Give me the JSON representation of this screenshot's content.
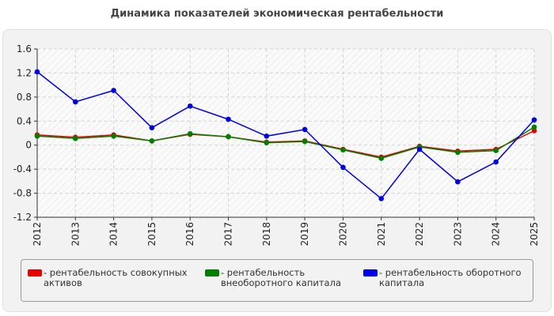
{
  "chart_data": {
    "type": "line",
    "title": "Динамика показателей экономическая рентабельности",
    "xlabel": "",
    "ylabel": "",
    "categories": [
      "2012",
      "2013",
      "2014",
      "2015",
      "2016",
      "2017",
      "2018",
      "2019",
      "2020",
      "2021",
      "2022",
      "2023",
      "2024",
      "2025"
    ],
    "ylim": [
      -1.2,
      1.6
    ],
    "yticks": [
      "1.6",
      "1.2",
      "0.8",
      "0.4",
      "0",
      "-0.4",
      "-0.8",
      "-1.2"
    ],
    "ytick_values": [
      1.6,
      1.2,
      0.8,
      0.4,
      0,
      -0.4,
      -0.8,
      -1.2
    ],
    "grid": true,
    "legend_position": "bottom",
    "series": [
      {
        "name": "- рентабельность совокупных активов",
        "color": "#e60000",
        "values": [
          0.17,
          0.13,
          0.17,
          0.07,
          0.18,
          0.14,
          0.05,
          0.07,
          -0.07,
          -0.2,
          -0.02,
          -0.1,
          -0.07,
          0.24
        ]
      },
      {
        "name": "- рентабельность внеоборотного капитала",
        "color": "#008000",
        "values": [
          0.15,
          0.11,
          0.15,
          0.07,
          0.19,
          0.14,
          0.04,
          0.06,
          -0.08,
          -0.22,
          -0.03,
          -0.12,
          -0.09,
          0.3
        ]
      },
      {
        "name": "- рентабельность оборотного капитала",
        "color": "#0000e6",
        "values": [
          1.22,
          0.72,
          0.91,
          0.29,
          0.65,
          0.43,
          0.15,
          0.26,
          -0.37,
          -0.89,
          -0.07,
          -0.61,
          -0.28,
          0.42
        ]
      }
    ]
  }
}
